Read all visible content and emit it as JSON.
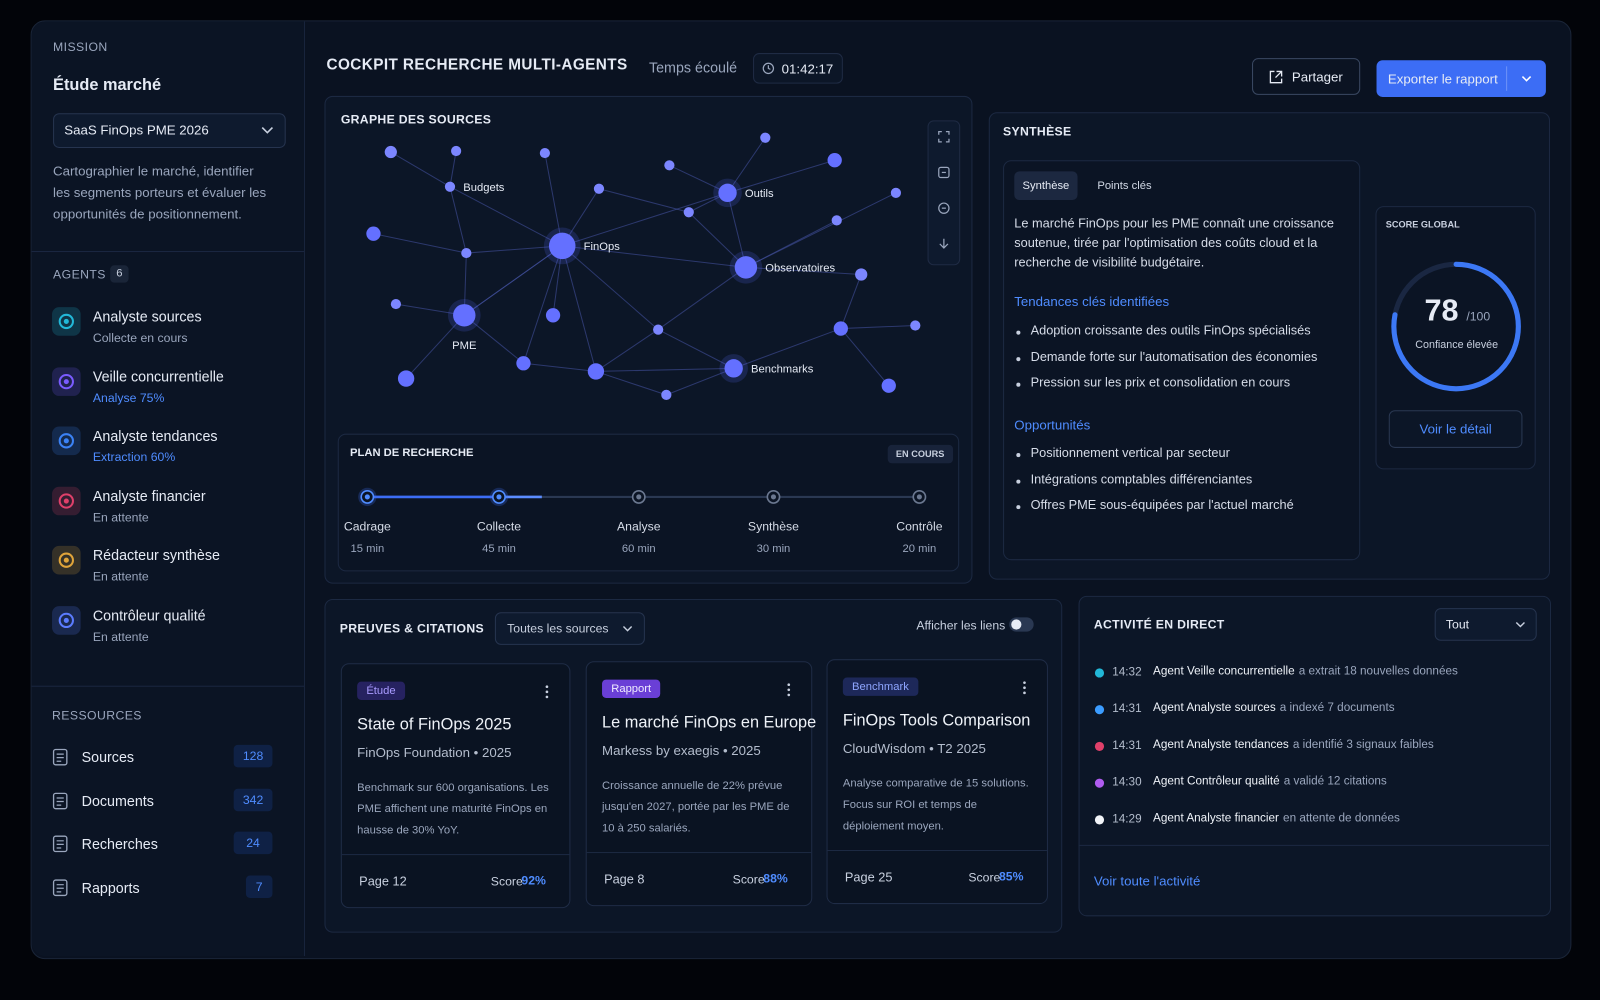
{
  "sidebar": {
    "mission_label": "MISSION",
    "mission_title": "Étude marché",
    "mission_select": "SaaS FinOps PME 2026",
    "mission_description": "Cartographier le marché, identifier les segments porteurs et évaluer les opportunités de positionnement.",
    "agents_label": "AGENTS",
    "agents_count": 6,
    "agents": [
      {
        "name": "Analyste sources",
        "status": "Collecte en cours"
      },
      {
        "name": "Veille concurrentielle",
        "status": "Analyse 75%"
      },
      {
        "name": "Analyste tendances",
        "status": "Extraction 60%"
      },
      {
        "name": "Analyste financier",
        "status": "En attente"
      },
      {
        "name": "Rédacteur synthèse",
        "status": "En attente"
      },
      {
        "name": "Contrôleur qualité",
        "status": "En attente"
      }
    ],
    "resources_label": "RESSOURCES",
    "resources": [
      {
        "label": "Sources",
        "count": 128
      },
      {
        "label": "Documents",
        "count": 342
      },
      {
        "label": "Recherches",
        "count": 24
      },
      {
        "label": "Rapports",
        "count": 7
      }
    ]
  },
  "header": {
    "title": "COCKPIT RECHERCHE MULTI-AGENTS",
    "elapsed_label": "Temps écoulé",
    "elapsed": "01:42:17",
    "share": "Partager",
    "export": "Exporter le rapport"
  },
  "graph": {
    "title": "GRAPHE DES SOURCES",
    "node_labels": [
      "Budgets",
      "FinOps",
      "Outils",
      "Observatoires",
      "PME",
      "Benchmarks"
    ]
  },
  "plan": {
    "title": "PLAN DE RECHERCHE",
    "status": "EN COURS",
    "steps": [
      {
        "name": "Cadrage",
        "duration": "15 min"
      },
      {
        "name": "Collecte",
        "duration": "45 min"
      },
      {
        "name": "Analyse",
        "duration": "60 min"
      },
      {
        "name": "Synthèse",
        "duration": "30 min"
      },
      {
        "name": "Contrôle",
        "duration": "20 min"
      }
    ]
  },
  "synthesis": {
    "title": "SYNTHÈSE",
    "tabs": [
      "Synthèse",
      "Points clés"
    ],
    "summary": "Le marché FinOps pour les PME connaît une croissance soutenue, tirée par l'optimisation des coûts cloud et la recherche de visibilité budgétaire.",
    "trends_title": "Tendances clés identifiées",
    "trends": [
      "Adoption croissante des outils FinOps spécialisés",
      "Demande forte sur l'automatisation des économies",
      "Pression sur les prix et consolidation en cours"
    ],
    "opportunities_title": "Opportunités",
    "opportunities": [
      "Positionnement vertical par secteur",
      "Intégrations comptables différenciantes",
      "Offres PME sous-équipées par l'actuel marché"
    ],
    "score": {
      "label": "SCORE GLOBAL",
      "value": 78,
      "max": "/100",
      "confidence": "Confiance élevée",
      "detail": "Voir le détail"
    }
  },
  "evidence": {
    "title": "PREUVES & CITATIONS",
    "filter": "Toutes les sources",
    "toggle_label": "Afficher les liens",
    "cards": [
      {
        "tag": "Étude",
        "title": "State of FinOps 2025",
        "source": "FinOps Foundation • 2025",
        "excerpt": "Benchmark sur 600 organisations. Les PME affichent une maturité FinOps en hausse de 30% YoY.",
        "page": "Page 12",
        "score_label": "Score",
        "score": "92%"
      },
      {
        "tag": "Rapport",
        "title": "Le marché FinOps en Europe",
        "source": "Markess by exaegis • 2025",
        "excerpt": "Croissance annuelle de 22% prévue jusqu'en 2027, portée par les PME de 10 à 250 salariés.",
        "page": "Page 8",
        "score_label": "Score",
        "score": "88%"
      },
      {
        "tag": "Benchmark",
        "title": "FinOps Tools Comparison",
        "source": "CloudWisdom • T2 2025",
        "excerpt": "Analyse comparative de 15 solutions. Focus sur ROI et temps de déploiement moyen.",
        "page": "Page 25",
        "score_label": "Score",
        "score": "85%"
      }
    ]
  },
  "activity": {
    "title": "ACTIVITÉ EN DIRECT",
    "filter": "Tout",
    "items": [
      {
        "time": "14:32",
        "agent": "Agent Veille concurrentielle",
        "action": "a extrait 18 nouvelles données"
      },
      {
        "time": "14:31",
        "agent": "Agent Analyste sources",
        "action": "a indexé 7 documents"
      },
      {
        "time": "14:31",
        "agent": "Agent Analyste tendances",
        "action": "a identifié 3 signaux faibles"
      },
      {
        "time": "14:30",
        "agent": "Agent Contrôleur qualité",
        "action": "a validé 12 citations"
      },
      {
        "time": "14:29",
        "agent": "Agent Analyste financier",
        "action": "en attente de données"
      }
    ],
    "more": "Voir toute l'activité"
  }
}
